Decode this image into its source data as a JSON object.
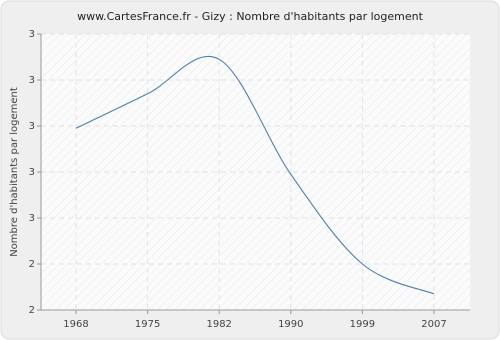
{
  "chart_data": {
    "type": "line",
    "title": "www.CartesFrance.fr - Gizy : Nombre d'habitants par logement",
    "y_label": "Nombre d'habitants par logement",
    "categories": [
      "1968",
      "1975",
      "1982",
      "1990",
      "1999",
      "2007"
    ],
    "series": [
      {
        "name": "Gizy",
        "color": "#4f7fb0",
        "values": [
          2.99,
          3.14,
          3.29,
          2.79,
          2.4,
          2.27
        ]
      }
    ],
    "ylim": [
      2.2,
      3.4
    ],
    "yticks": [
      {
        "value": 2.2,
        "label": "2"
      },
      {
        "value": 2.4,
        "label": "2"
      },
      {
        "value": 2.6,
        "label": "3"
      },
      {
        "value": 2.8,
        "label": "3"
      },
      {
        "value": 3.0,
        "label": "3"
      },
      {
        "value": 3.2,
        "label": "3"
      },
      {
        "value": 3.4,
        "label": "3"
      }
    ],
    "grid": true
  }
}
